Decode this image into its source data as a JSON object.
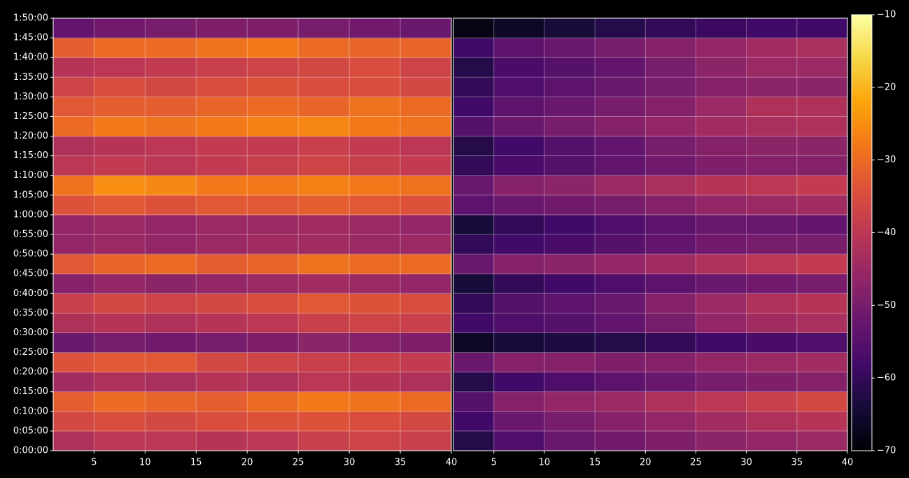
{
  "chart_data": {
    "type": "heatmap",
    "ylim": [
      0,
      6600
    ],
    "yticks": [
      {
        "value": 0,
        "label": "0:00:00"
      },
      {
        "value": 300,
        "label": "0:05:00"
      },
      {
        "value": 600,
        "label": "0:10:00"
      },
      {
        "value": 900,
        "label": "0:15:00"
      },
      {
        "value": 1200,
        "label": "0:20:00"
      },
      {
        "value": 1500,
        "label": "0:25:00"
      },
      {
        "value": 1800,
        "label": "0:30:00"
      },
      {
        "value": 2100,
        "label": "0:35:00"
      },
      {
        "value": 2400,
        "label": "0:40:00"
      },
      {
        "value": 2700,
        "label": "0:45:00"
      },
      {
        "value": 3000,
        "label": "0:50:00"
      },
      {
        "value": 3300,
        "label": "0:55:00"
      },
      {
        "value": 3600,
        "label": "1:00:00"
      },
      {
        "value": 3900,
        "label": "1:05:00"
      },
      {
        "value": 4200,
        "label": "1:10:00"
      },
      {
        "value": 4500,
        "label": "1:15:00"
      },
      {
        "value": 4800,
        "label": "1:20:00"
      },
      {
        "value": 5100,
        "label": "1:25:00"
      },
      {
        "value": 5400,
        "label": "1:30:00"
      },
      {
        "value": 5700,
        "label": "1:35:00"
      },
      {
        "value": 6000,
        "label": "1:40:00"
      },
      {
        "value": 6300,
        "label": "1:45:00"
      },
      {
        "value": 6600,
        "label": "1:50:00"
      }
    ],
    "y_bins": [
      0,
      300,
      600,
      900,
      1200,
      1500,
      1800,
      2100,
      2400,
      2700,
      3000,
      3300,
      3600,
      3900,
      4200,
      4500,
      4800,
      5100,
      5400,
      5700,
      6000,
      6300,
      6600
    ],
    "grid": true,
    "colormap": "inferno",
    "panels": [
      {
        "xlim": [
          1,
          40
        ],
        "xticks": [
          5,
          10,
          15,
          20,
          25,
          30,
          35,
          40
        ],
        "x_bins": [
          1,
          5,
          10,
          15,
          20,
          25,
          30,
          35,
          40
        ],
        "values": [
          [
            -42,
            -40,
            -40,
            -41,
            -40,
            -38,
            -37,
            -38
          ],
          [
            -36,
            -35,
            -36,
            -35,
            -34,
            -34,
            -35,
            -36
          ],
          [
            -32,
            -30,
            -31,
            -32,
            -30,
            -28,
            -29,
            -30
          ],
          [
            -44,
            -42,
            -43,
            -41,
            -42,
            -40,
            -41,
            -42
          ],
          [
            -34,
            -33,
            -33,
            -36,
            -37,
            -38,
            -38,
            -39
          ],
          [
            -52,
            -50,
            -51,
            -50,
            -49,
            -47,
            -48,
            -49
          ],
          [
            -42,
            -41,
            -42,
            -41,
            -40,
            -38,
            -37,
            -38
          ],
          [
            -38,
            -36,
            -37,
            -36,
            -35,
            -33,
            -34,
            -35
          ],
          [
            -48,
            -46,
            -47,
            -46,
            -45,
            -44,
            -45,
            -46
          ],
          [
            -33,
            -31,
            -30,
            -32,
            -31,
            -29,
            -30,
            -30
          ],
          [
            -46,
            -45,
            -46,
            -45,
            -44,
            -44,
            -45,
            -45
          ],
          [
            -46,
            -45,
            -46,
            -45,
            -45,
            -44,
            -45,
            -46
          ],
          [
            -34,
            -33,
            -34,
            -33,
            -33,
            -32,
            -33,
            -34
          ],
          [
            -29,
            -25,
            -26,
            -28,
            -28,
            -27,
            -28,
            -29
          ],
          [
            -40,
            -39,
            -40,
            -39,
            -38,
            -37,
            -38,
            -39
          ],
          [
            -42,
            -41,
            -40,
            -39,
            -39,
            -38,
            -39,
            -40
          ],
          [
            -30,
            -28,
            -29,
            -28,
            -27,
            -26,
            -28,
            -29
          ],
          [
            -33,
            -32,
            -32,
            -31,
            -30,
            -31,
            -29,
            -30
          ],
          [
            -37,
            -35,
            -36,
            -35,
            -34,
            -35,
            -35,
            -36
          ],
          [
            -41,
            -40,
            -39,
            -38,
            -37,
            -36,
            -35,
            -37
          ],
          [
            -32,
            -30,
            -30,
            -29,
            -28,
            -30,
            -31,
            -31
          ],
          [
            -53,
            -51,
            -50,
            -49,
            -49,
            -50,
            -51,
            -52
          ]
        ]
      },
      {
        "xlim": [
          1,
          40
        ],
        "xticks": [
          5,
          10,
          15,
          20,
          25,
          30,
          35,
          40
        ],
        "x_bins": [
          1,
          5,
          10,
          15,
          20,
          25,
          30,
          35,
          40
        ],
        "values": [
          [
            -62,
            -56,
            -52,
            -51,
            -49,
            -47,
            -46,
            -45
          ],
          [
            -58,
            -52,
            -50,
            -48,
            -46,
            -44,
            -42,
            -41
          ],
          [
            -55,
            -48,
            -46,
            -45,
            -42,
            -40,
            -38,
            -36
          ],
          [
            -62,
            -58,
            -56,
            -54,
            -52,
            -50,
            -49,
            -48
          ],
          [
            -52,
            -48,
            -48,
            -49,
            -48,
            -46,
            -45,
            -44
          ],
          [
            -66,
            -64,
            -63,
            -62,
            -60,
            -58,
            -57,
            -56
          ],
          [
            -58,
            -56,
            -55,
            -53,
            -50,
            -46,
            -44,
            -43
          ],
          [
            -60,
            -55,
            -54,
            -52,
            -48,
            -45,
            -42,
            -41
          ],
          [
            -64,
            -60,
            -58,
            -56,
            -54,
            -52,
            -51,
            -50
          ],
          [
            -52,
            -48,
            -47,
            -46,
            -44,
            -42,
            -40,
            -39
          ],
          [
            -60,
            -58,
            -57,
            -55,
            -53,
            -51,
            -50,
            -50
          ],
          [
            -64,
            -60,
            -58,
            -56,
            -54,
            -52,
            -52,
            -53
          ],
          [
            -54,
            -52,
            -51,
            -50,
            -48,
            -46,
            -45,
            -44
          ],
          [
            -52,
            -48,
            -47,
            -45,
            -43,
            -41,
            -40,
            -39
          ],
          [
            -60,
            -57,
            -55,
            -53,
            -51,
            -49,
            -48,
            -48
          ],
          [
            -62,
            -58,
            -55,
            -53,
            -50,
            -48,
            -47,
            -47
          ],
          [
            -55,
            -52,
            -50,
            -48,
            -46,
            -44,
            -43,
            -42
          ],
          [
            -58,
            -54,
            -52,
            -50,
            -48,
            -45,
            -42,
            -42
          ],
          [
            -60,
            -56,
            -54,
            -52,
            -50,
            -48,
            -47,
            -47
          ],
          [
            -62,
            -57,
            -55,
            -53,
            -50,
            -47,
            -45,
            -45
          ],
          [
            -58,
            -54,
            -52,
            -50,
            -48,
            -46,
            -44,
            -43
          ],
          [
            -68,
            -66,
            -64,
            -62,
            -60,
            -59,
            -58,
            -58
          ]
        ]
      }
    ],
    "colorbar": {
      "clim": [
        -70,
        -10
      ],
      "ticks": [
        {
          "value": -70,
          "label": "−70"
        },
        {
          "value": -60,
          "label": "−60"
        },
        {
          "value": -50,
          "label": "−50"
        },
        {
          "value": -40,
          "label": "−40"
        },
        {
          "value": -30,
          "label": "−30"
        },
        {
          "value": -20,
          "label": "−20"
        },
        {
          "value": -10,
          "label": "−10"
        }
      ]
    }
  }
}
